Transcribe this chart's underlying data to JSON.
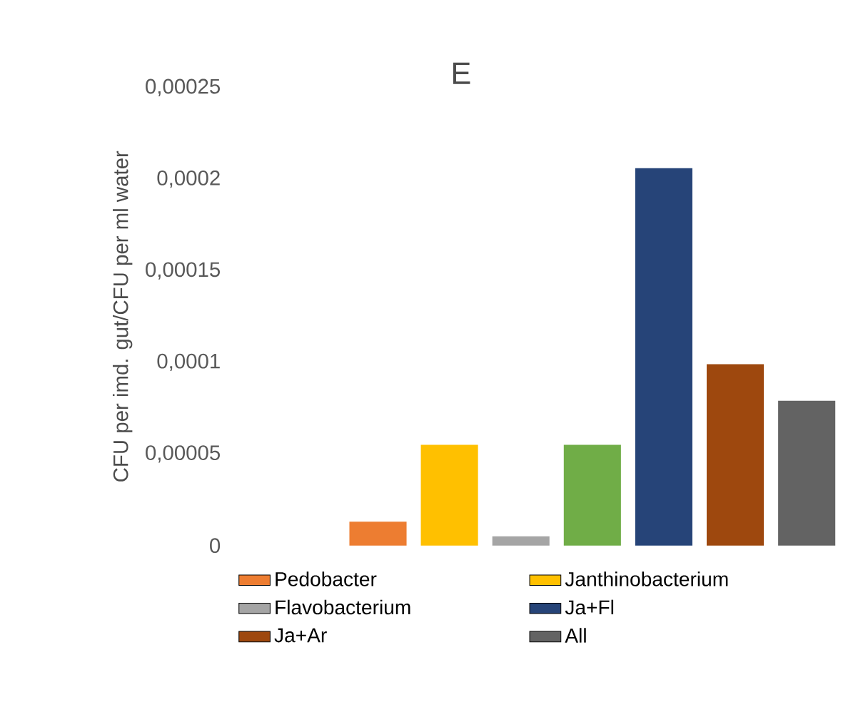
{
  "chart_data": {
    "type": "bar",
    "title": "E",
    "ylabel": "CFU per imd. gut/CFU per ml water",
    "categories": [
      null
    ],
    "series": [
      {
        "name": "Pedobacter",
        "color": "#ed7d31",
        "values": [
          1.3e-05
        ]
      },
      {
        "name": "Janthinobacterium",
        "color": "#ffc000",
        "values": [
          5.5e-05
        ]
      },
      {
        "name": "Flavobacterium",
        "color": "#a5a5a5",
        "values": [
          5e-06
        ]
      },
      {
        "color": "#70ad47",
        "values": [
          5.5e-05
        ]
      },
      {
        "name": "Ja+Fl",
        "color": "#264478",
        "values": [
          0.000206
        ]
      },
      {
        "name": "Ja+Ar",
        "color": "#9e480e",
        "values": [
          9.9e-05
        ]
      },
      {
        "name": "All",
        "color": "#636363",
        "values": [
          7.9e-05
        ]
      }
    ],
    "ylim": [
      0,
      0.00025
    ],
    "yticks": [
      {
        "value": 0,
        "label": "0"
      },
      {
        "value": 5e-05,
        "label": "0,00005"
      },
      {
        "value": 0.0001,
        "label": "0,0001"
      },
      {
        "value": 0.00015,
        "label": "0,00015"
      },
      {
        "value": 0.0002,
        "label": "0,0002"
      },
      {
        "value": 0.00025,
        "label": "0,00025"
      }
    ],
    "legend": "bottom",
    "grid": false
  }
}
